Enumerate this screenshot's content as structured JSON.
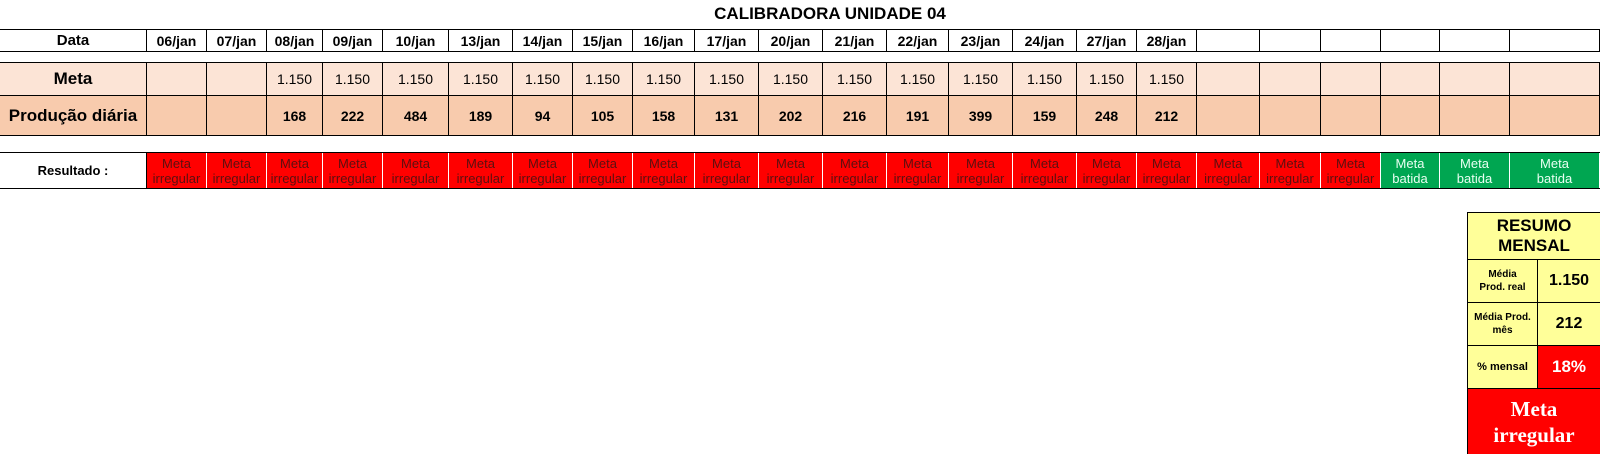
{
  "title": "CALIBRADORA UNIDADE 04",
  "labels": {
    "date": "Data",
    "meta": "Meta",
    "production": "Produção diária",
    "result": "Resultado :"
  },
  "dates": [
    "06/jan",
    "07/jan",
    "08/jan",
    "09/jan",
    "10/jan",
    "13/jan",
    "14/jan",
    "15/jan",
    "16/jan",
    "17/jan",
    "20/jan",
    "21/jan",
    "22/jan",
    "23/jan",
    "24/jan",
    "27/jan",
    "28/jan",
    "",
    "",
    "",
    "",
    "",
    ""
  ],
  "meta": [
    "",
    "",
    "1.150",
    "1.150",
    "1.150",
    "1.150",
    "1.150",
    "1.150",
    "1.150",
    "1.150",
    "1.150",
    "1.150",
    "1.150",
    "1.150",
    "1.150",
    "1.150",
    "1.150",
    "",
    "",
    "",
    "",
    "",
    ""
  ],
  "production": [
    "",
    "",
    "168",
    "222",
    "484",
    "189",
    "94",
    "105",
    "158",
    "131",
    "202",
    "216",
    "191",
    "399",
    "159",
    "248",
    "212",
    "",
    "",
    "",
    "",
    "",
    ""
  ],
  "results": [
    {
      "l1": "Meta",
      "l2": "irregular",
      "status": "red"
    },
    {
      "l1": "Meta",
      "l2": "irregular",
      "status": "red"
    },
    {
      "l1": "Meta",
      "l2": "irregular",
      "status": "red"
    },
    {
      "l1": "Meta",
      "l2": "irregular",
      "status": "red"
    },
    {
      "l1": "Meta",
      "l2": "irregular",
      "status": "red"
    },
    {
      "l1": "Meta",
      "l2": "irregular",
      "status": "red"
    },
    {
      "l1": "Meta",
      "l2": "irregular",
      "status": "red"
    },
    {
      "l1": "Meta",
      "l2": "irregular",
      "status": "red"
    },
    {
      "l1": "Meta",
      "l2": "irregular",
      "status": "red"
    },
    {
      "l1": "Meta",
      "l2": "irregular",
      "status": "red"
    },
    {
      "l1": "Meta",
      "l2": "irregular",
      "status": "red"
    },
    {
      "l1": "Meta",
      "l2": "irregular",
      "status": "red"
    },
    {
      "l1": "Meta",
      "l2": "irregular",
      "status": "red"
    },
    {
      "l1": "Meta",
      "l2": "irregular",
      "status": "red"
    },
    {
      "l1": "Meta",
      "l2": "irregular",
      "status": "red"
    },
    {
      "l1": "Meta",
      "l2": "irregular",
      "status": "red"
    },
    {
      "l1": "Meta",
      "l2": "irregular",
      "status": "red"
    },
    {
      "l1": "Meta",
      "l2": "irregular",
      "status": "red"
    },
    {
      "l1": "Meta",
      "l2": "irregular",
      "status": "red"
    },
    {
      "l1": "Meta",
      "l2": "irregular",
      "status": "red"
    },
    {
      "l1": "Meta",
      "l2": "batida",
      "status": "green"
    },
    {
      "l1": "Meta",
      "l2": "batida",
      "status": "green"
    },
    {
      "l1": "Meta",
      "l2": "batida",
      "status": "green"
    }
  ],
  "summary": {
    "title_line1": "RESUMO",
    "title_line2": "MENSAL",
    "avg_real_label_1": "Média",
    "avg_real_label_2": "Prod. real",
    "avg_real_value": "1.150",
    "avg_month_label_1": "Média Prod.",
    "avg_month_label_2": "mês",
    "avg_month_value": "212",
    "pct_label": "% mensal",
    "pct_value": "18%",
    "result_line1": "Meta",
    "result_line2": "irregular"
  },
  "colors": {
    "meta_row": "#fce4d6",
    "production_row": "#f8cbad",
    "fail": "#ff0000",
    "pass": "#00a651",
    "summary_bg": "#ffff99"
  }
}
